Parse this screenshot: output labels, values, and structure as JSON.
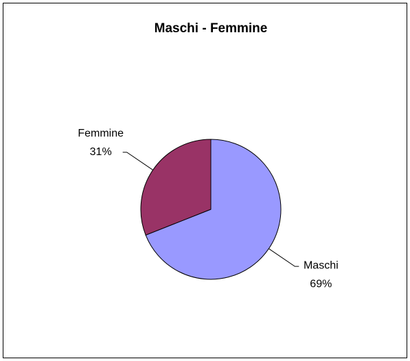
{
  "chart_data": {
    "type": "pie",
    "title": "Maschi - Femmine",
    "categories": [
      "Maschi",
      "Femmine"
    ],
    "values": [
      69,
      31
    ],
    "value_labels": [
      "69%",
      "31%"
    ],
    "colors": [
      "#9999ff",
      "#993366"
    ]
  }
}
